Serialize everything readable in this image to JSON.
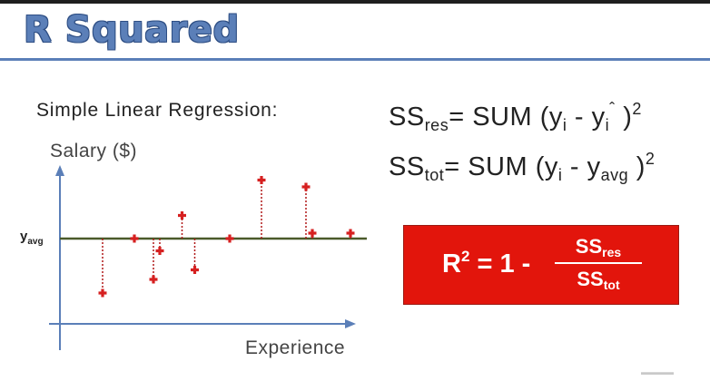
{
  "slide": {
    "title": "R Squared",
    "subtitle": "Simple Linear Regression:",
    "axes": {
      "y_label": "Salary ($)",
      "x_label": "Experience"
    },
    "yavg_label": {
      "base": "y",
      "sub": "avg"
    }
  },
  "formulas": {
    "ss_res": {
      "lhs": "SS",
      "lhs_sub": "res",
      "eq": "= SUM (y",
      "i": "i",
      "minus": " - y",
      "hat": "ˆ",
      "hat_sub": "i",
      "close": " )",
      "pow": "2"
    },
    "ss_tot": {
      "lhs": "SS",
      "lhs_sub": "tot",
      "eq": "= SUM (y",
      "i": "i",
      "minus": " - y",
      "avg_sub": "avg",
      "close": " )",
      "pow": "2"
    }
  },
  "r2_box": {
    "lhs": "R",
    "lhs_pow": "2",
    "rest": " = 1 -",
    "num": "SS",
    "num_sub": "res",
    "den": "SS",
    "den_sub": "tot",
    "fill_color": "#e2150c"
  },
  "chart_data": {
    "type": "scatter",
    "x": [
      1.0,
      2.0,
      2.6,
      2.8,
      3.5,
      3.9,
      5.0,
      6.0,
      7.4,
      7.6,
      8.8
    ],
    "y": [
      -2.0,
      0.0,
      -1.5,
      -0.45,
      0.85,
      -1.15,
      0.0,
      2.15,
      1.9,
      0.2,
      0.2
    ],
    "reference_line": "y_avg",
    "residual_lines": "dotted",
    "colors": {
      "points": "#d62020",
      "avg_line": "#4a5a2a",
      "axes": "#5b7fb8"
    }
  },
  "watermark": "▬▬▬▬"
}
